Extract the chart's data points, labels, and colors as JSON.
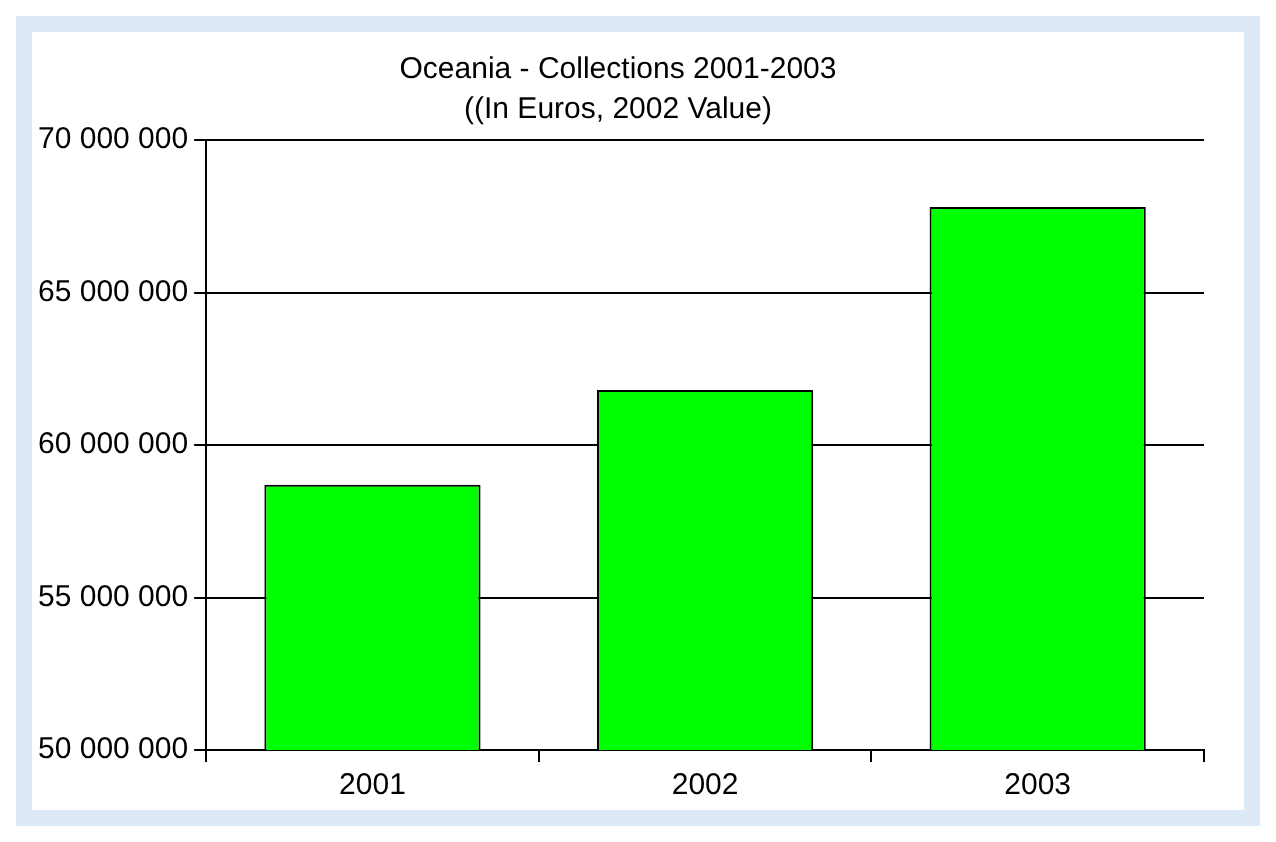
{
  "chart_data": {
    "type": "bar",
    "title": "Oceania - Collections 2001-2003",
    "subtitle": "((In Euros, 2002 Value)",
    "categories": [
      "2001",
      "2002",
      "2003"
    ],
    "series": [
      {
        "color": "#00ff00",
        "values": [
          58700000,
          61800000,
          67800000
        ]
      }
    ],
    "ylim": [
      50000000,
      70000000
    ],
    "yticks": [
      50000000,
      55000000,
      60000000,
      65000000,
      70000000
    ],
    "grid": "y",
    "legend": false
  }
}
